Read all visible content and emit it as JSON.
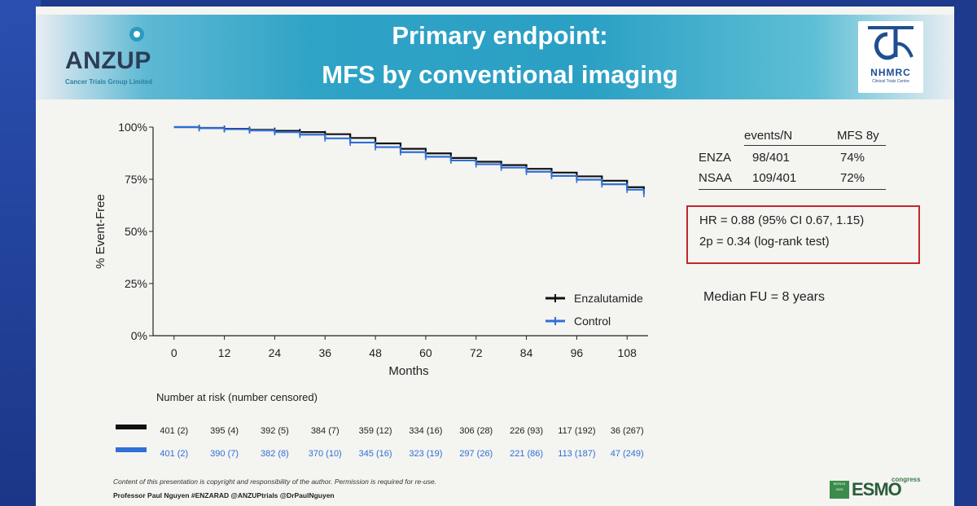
{
  "slide": {
    "title_line1": "Primary endpoint:",
    "title_line2": "MFS by conventional imaging",
    "left_logo": {
      "name": "ANZUP",
      "subtitle": "Cancer Trials Group Limited"
    },
    "right_logo": {
      "name": "NHMRC",
      "subtitle": "Clinical Trials Centre"
    },
    "footer_copyright": "Content of this presentation is copyright and responsibility of the author. Permission is required for re-use.",
    "footer_presenter": "Professor Paul Nguyen  #ENZARAD  @ANZUPtrials  @DrPaulNguyen",
    "congress": {
      "badge": "BERLIN 2025",
      "name": "ESMO",
      "suffix": "congress"
    }
  },
  "stats_table": {
    "headers": [
      "",
      "events/N",
      "MFS 8y"
    ],
    "rows": [
      [
        "ENZA",
        "98/401",
        "74%"
      ],
      [
        "NSAA",
        "109/401",
        "72%"
      ]
    ]
  },
  "hr_box": {
    "line1": "HR = 0.88 (95% CI 0.67, 1.15)",
    "line2": "2p = 0.34 (log-rank test)",
    "border_color": "#c0282c"
  },
  "median_fu": "Median FU = 8 years",
  "chart_data": {
    "type": "line",
    "subtype": "kaplan-meier",
    "xlabel": "Months",
    "ylabel": "% Event-Free",
    "xlim": [
      -5,
      113
    ],
    "ylim": [
      0,
      100
    ],
    "xticks": [
      0,
      12,
      24,
      36,
      48,
      60,
      72,
      84,
      96,
      108
    ],
    "yticks": [
      0,
      25,
      50,
      75,
      100
    ],
    "ytick_labels": [
      "0%",
      "25%",
      "50%",
      "75%",
      "100%"
    ],
    "legend": {
      "position": "bottom-right"
    },
    "series": [
      {
        "name": "Enzalutamide",
        "color": "#111111",
        "x": [
          0,
          6,
          12,
          18,
          24,
          30,
          36,
          42,
          48,
          54,
          60,
          66,
          72,
          78,
          84,
          90,
          96,
          102,
          108,
          112
        ],
        "y": [
          100,
          99.6,
          99.2,
          98.7,
          98.2,
          97.6,
          96.6,
          94.8,
          92.2,
          89.6,
          87.4,
          85.2,
          83.4,
          81.8,
          80.0,
          78.2,
          76.4,
          74.3,
          71.2,
          69.5
        ]
      },
      {
        "name": "Control",
        "color": "#2f6fd6",
        "x": [
          0,
          6,
          12,
          18,
          24,
          30,
          36,
          42,
          48,
          54,
          60,
          66,
          72,
          78,
          84,
          90,
          96,
          102,
          108,
          112
        ],
        "y": [
          100,
          99.5,
          99.0,
          98.4,
          97.6,
          96.4,
          94.6,
          92.6,
          90.4,
          88.0,
          85.8,
          84.0,
          82.2,
          80.6,
          78.6,
          76.6,
          74.8,
          72.6,
          70.0,
          68.0
        ]
      }
    ],
    "risk_table": {
      "title": "Number at risk (number censored)",
      "rows": [
        {
          "name": "Enzalutamide",
          "color": "#111111",
          "values": [
            "401 (2)",
            "395 (4)",
            "392 (5)",
            "384 (7)",
            "359 (12)",
            "334 (16)",
            "306 (28)",
            "226 (93)",
            "117 (192)",
            "36 (267)"
          ]
        },
        {
          "name": "Control",
          "color": "#2f6fd6",
          "values": [
            "401 (2)",
            "390 (7)",
            "382 (8)",
            "370 (10)",
            "345 (16)",
            "323 (19)",
            "297 (26)",
            "221 (86)",
            "113 (187)",
            "47 (249)"
          ]
        }
      ]
    }
  }
}
